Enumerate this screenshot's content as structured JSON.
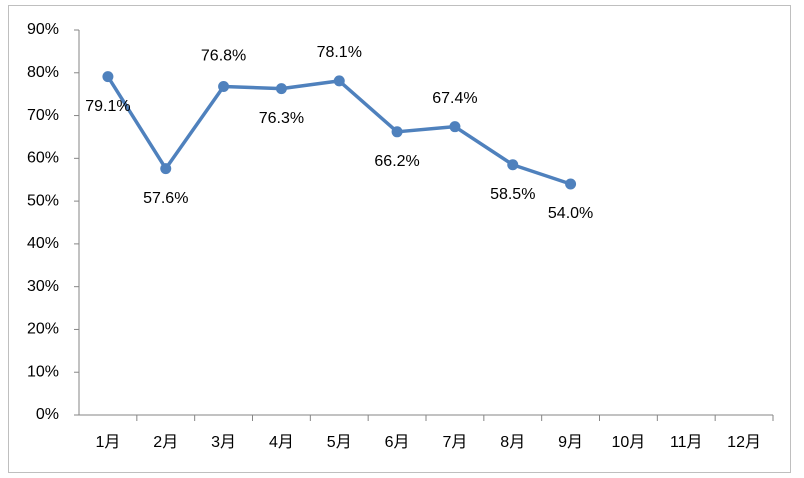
{
  "chart_data": {
    "type": "line",
    "categories": [
      "1月",
      "2月",
      "3月",
      "4月",
      "5月",
      "6月",
      "7月",
      "8月",
      "9月",
      "10月",
      "11月",
      "12月"
    ],
    "series": [
      {
        "name": "rate",
        "color": "#4f81bd",
        "values": [
          79.1,
          57.6,
          76.8,
          76.3,
          78.1,
          66.2,
          67.4,
          58.5,
          54.0,
          null,
          null,
          null
        ],
        "value_labels": [
          "79.1%",
          "57.6%",
          "76.8%",
          "76.3%",
          "78.1%",
          "66.2%",
          "67.4%",
          "58.5%",
          "54.0%",
          null,
          null,
          null
        ]
      }
    ],
    "ylim": [
      0,
      90
    ],
    "yticks": [
      {
        "value": 0,
        "label": "0%"
      },
      {
        "value": 10,
        "label": "10%"
      },
      {
        "value": 20,
        "label": "20%"
      },
      {
        "value": 30,
        "label": "30%"
      },
      {
        "value": 40,
        "label": "40%"
      },
      {
        "value": 50,
        "label": "50%"
      },
      {
        "value": 60,
        "label": "60%"
      },
      {
        "value": 70,
        "label": "70%"
      },
      {
        "value": 80,
        "label": "80%"
      },
      {
        "value": 90,
        "label": "90%"
      }
    ],
    "grid": false
  }
}
